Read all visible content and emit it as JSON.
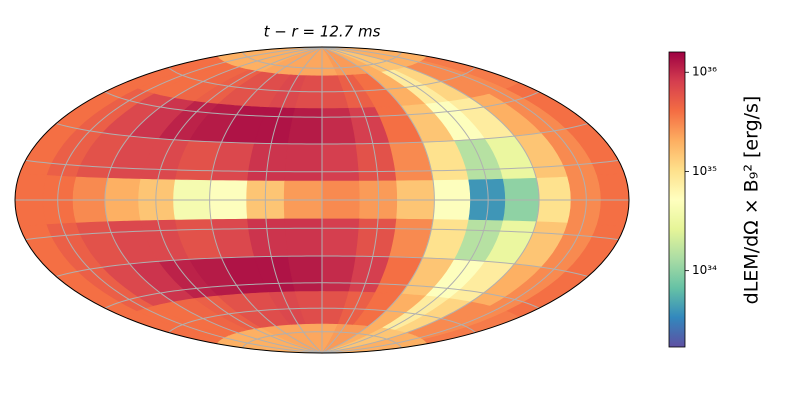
{
  "chart_data": {
    "type": "heatmap",
    "projection": "hammer",
    "title": "t − r = 12.7 ms",
    "colorbar_label": "dLEM/dΩ × B₉² [erg/s]",
    "lon": [
      -170,
      -150,
      -130,
      -110,
      -90,
      -70,
      -50,
      -30,
      -10,
      10,
      30,
      50,
      70,
      90,
      110,
      130,
      150,
      170
    ],
    "lat": [
      80,
      60,
      40,
      20,
      0,
      -20,
      -40,
      -60,
      -80
    ],
    "z": [
      [
        2e+35,
        2e+35,
        2e+35,
        2e+35,
        2e+35,
        2.2e+35,
        2.2e+35,
        2.2e+35,
        2.2e+35,
        2.2e+35,
        2.5e+35,
        2.5e+35,
        2e+35,
        1.5e+35,
        1.5e+35,
        2e+35,
        2e+35,
        2e+35
      ],
      [
        4e+35,
        4e+35,
        4e+35,
        4.5e+35,
        5e+35,
        6e+35,
        6.5e+35,
        7e+35,
        6.5e+35,
        6e+35,
        5e+35,
        4e+35,
        2e+35,
        8e+34,
        1.2e+35,
        3e+35,
        3e+35,
        3.5e+35
      ],
      [
        4e+35,
        5e+35,
        7e+35,
        9e+35,
        1.1e+36,
        1.2e+36,
        1.3e+36,
        1.3e+36,
        1.2e+36,
        1e+36,
        8e+35,
        4e+35,
        1.5e+35,
        5e+34,
        8e+34,
        2e+35,
        3e+35,
        4e+35
      ],
      [
        4e+35,
        5e+35,
        6e+35,
        7e+35,
        7e+35,
        6e+35,
        7e+35,
        9e+35,
        9e+35,
        8e+35,
        6e+35,
        3e+35,
        1e+35,
        1.5e+34,
        3e+34,
        1.5e+35,
        3e+35,
        4e+35
      ],
      [
        4e+35,
        4e+35,
        3e+35,
        2e+35,
        1.5e+35,
        4e+34,
        5e+34,
        1.5e+35,
        2.5e+35,
        3e+35,
        2.5e+35,
        1.5e+35,
        5e+34,
        4e+33,
        1e+34,
        1e+35,
        3e+35,
        4e+35
      ],
      [
        4e+35,
        5e+35,
        6e+35,
        7e+35,
        7e+35,
        6e+35,
        7e+35,
        9e+35,
        9e+35,
        8e+35,
        6e+35,
        3e+35,
        1e+35,
        1.5e+34,
        3e+34,
        1.5e+35,
        3e+35,
        4e+35
      ],
      [
        4e+35,
        5e+35,
        7e+35,
        9e+35,
        1.1e+36,
        1.2e+36,
        1.3e+36,
        1.3e+36,
        1.2e+36,
        1e+36,
        8e+35,
        4e+35,
        1.5e+35,
        5e+34,
        8e+34,
        2e+35,
        3e+35,
        4e+35
      ],
      [
        4e+35,
        4e+35,
        4e+35,
        4.5e+35,
        5e+35,
        6e+35,
        6.5e+35,
        7e+35,
        6.5e+35,
        6e+35,
        5e+35,
        4e+35,
        2e+35,
        8e+34,
        1.2e+35,
        3e+35,
        3e+35,
        3.5e+35
      ],
      [
        2e+35,
        2e+35,
        2e+35,
        2e+35,
        2e+35,
        2.2e+35,
        2.2e+35,
        2.2e+35,
        2.2e+35,
        2.2e+35,
        2.5e+35,
        2.5e+35,
        2e+35,
        1.5e+35,
        1.5e+35,
        2e+35,
        2e+35,
        2e+35
      ]
    ],
    "xlim": [
      -180,
      180
    ],
    "ylim": [
      -90,
      90
    ],
    "xticks": [
      -150,
      -120,
      -90,
      -60,
      -30,
      0,
      30,
      60,
      90,
      120,
      150
    ],
    "yticks": [
      -75,
      -60,
      -45,
      -30,
      -15,
      0,
      15,
      30,
      45,
      60,
      75
    ],
    "grid": true,
    "clim": [
      1.7e+33,
      1.6e+36
    ],
    "log_scale": true,
    "cticks": [
      {
        "value": 1e+34,
        "label": "10³⁴"
      },
      {
        "value": 1e+35,
        "label": "10³⁵"
      },
      {
        "value": 1e+36,
        "label": "10³⁶"
      }
    ],
    "colormap": [
      "#5e4fa2",
      "#3288bd",
      "#66c2a5",
      "#abdda4",
      "#e6f598",
      "#ffffbf",
      "#fee08b",
      "#fdae61",
      "#f46d43",
      "#d53e4f",
      "#9e0142"
    ]
  }
}
